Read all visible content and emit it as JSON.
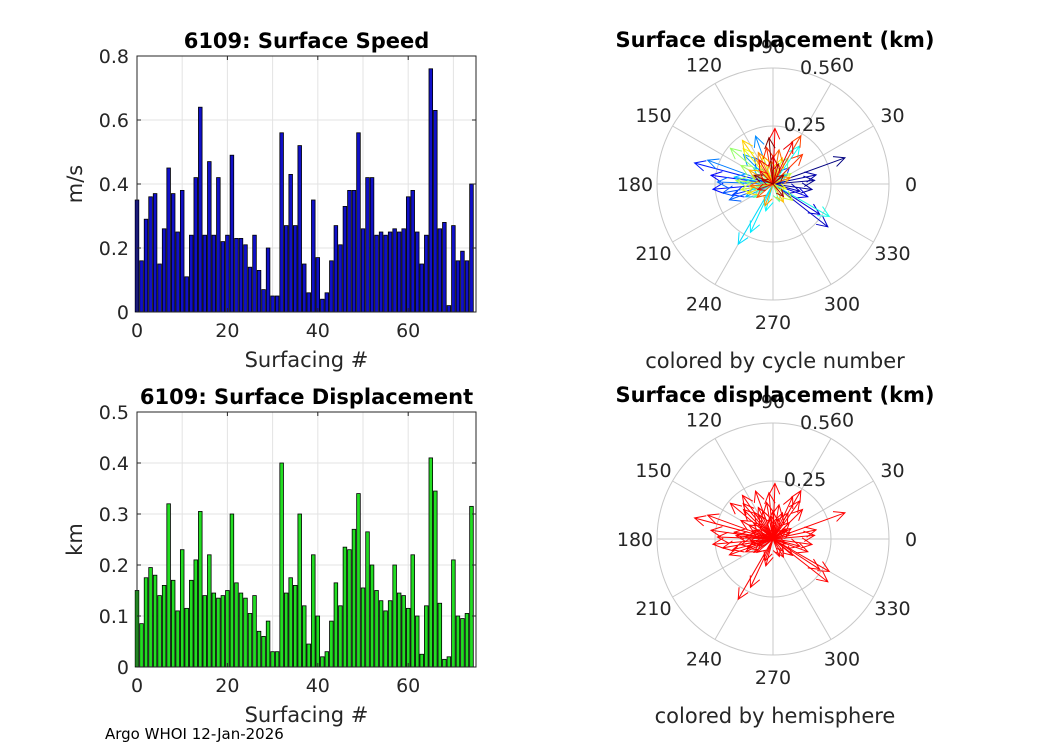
{
  "footer": "Argo WHOI 12-Jan-2026",
  "colors": {
    "speed_bar": "#1010c8",
    "displacement_bar": "#22dd22",
    "grid": "#e3e3e3",
    "polar_grid": "#c8c8c8",
    "arrow_hemisphere": "#ff0000"
  },
  "chart_data": [
    {
      "type": "bar",
      "title": "6109: Surface Speed",
      "xlabel": "Surfacing #",
      "ylabel": "m/s",
      "xlim": [
        0,
        75
      ],
      "ylim": [
        0,
        0.8
      ],
      "xticks": [
        "0",
        "20",
        "40",
        "60"
      ],
      "yticks": [
        "0",
        "0.2",
        "0.4",
        "0.6",
        "0.8"
      ],
      "x": [
        0,
        1,
        2,
        3,
        4,
        5,
        6,
        7,
        8,
        9,
        10,
        11,
        12,
        13,
        14,
        15,
        16,
        17,
        18,
        19,
        20,
        21,
        22,
        23,
        24,
        25,
        26,
        27,
        28,
        29,
        30,
        31,
        32,
        33,
        34,
        35,
        36,
        37,
        38,
        39,
        40,
        41,
        42,
        43,
        44,
        45,
        46,
        47,
        48,
        49,
        50,
        51,
        52,
        53,
        54,
        55,
        56,
        57,
        58,
        59,
        60,
        61,
        62,
        63,
        64,
        65,
        66,
        67,
        68,
        69,
        70,
        71,
        72,
        73,
        74
      ],
      "values": [
        0.35,
        0.16,
        0.29,
        0.36,
        0.37,
        0.15,
        0.26,
        0.45,
        0.37,
        0.25,
        0.38,
        0.11,
        0.24,
        0.42,
        0.64,
        0.24,
        0.47,
        0.24,
        0.42,
        0.22,
        0.24,
        0.49,
        0.23,
        0.23,
        0.21,
        0.14,
        0.24,
        0.13,
        0.07,
        0.2,
        0.05,
        0.05,
        0.56,
        0.27,
        0.43,
        0.27,
        0.52,
        0.15,
        0.06,
        0.35,
        0.17,
        0.04,
        0.06,
        0.16,
        0.27,
        0.21,
        0.33,
        0.38,
        0.38,
        0.56,
        0.26,
        0.42,
        0.42,
        0.24,
        0.25,
        0.24,
        0.25,
        0.26,
        0.25,
        0.26,
        0.36,
        0.38,
        0.25,
        0.15,
        0.24,
        0.76,
        0.63,
        0.26,
        0.28,
        0.02,
        0.27,
        0.16,
        0.19,
        0.16,
        0.4
      ]
    },
    {
      "type": "polar-quiver",
      "title": "Surface displacement (km)",
      "subtitle": "colored by cycle number",
      "rmax": 0.5,
      "radial_ticks": [
        "0.25",
        "0.5"
      ],
      "angle_ticks": [
        "0",
        "30",
        "60",
        "90",
        "120",
        "150",
        "180",
        "210",
        "240",
        "270",
        "300",
        "330"
      ],
      "vectors": [
        {
          "angle_deg": 20,
          "r": 0.33,
          "cycle": 1
        },
        {
          "angle_deg": 5,
          "r": 0.18,
          "cycle": 2
        },
        {
          "angle_deg": -8,
          "r": 0.17,
          "cycle": 3
        },
        {
          "angle_deg": 12,
          "r": 0.19,
          "cycle": 4
        },
        {
          "angle_deg": -15,
          "r": 0.12,
          "cycle": 5
        },
        {
          "angle_deg": -38,
          "r": 0.3,
          "cycle": 6
        },
        {
          "angle_deg": -33,
          "r": 0.24,
          "cycle": 7
        },
        {
          "angle_deg": -20,
          "r": 0.16,
          "cycle": 8
        },
        {
          "angle_deg": 150,
          "r": 0.08,
          "cycle": 9
        },
        {
          "angle_deg": 172,
          "r": 0.27,
          "cycle": 10
        },
        {
          "angle_deg": 185,
          "r": 0.26,
          "cycle": 11
        },
        {
          "angle_deg": 165,
          "r": 0.35,
          "cycle": 12
        },
        {
          "angle_deg": 195,
          "r": 0.18,
          "cycle": 13
        },
        {
          "angle_deg": 45,
          "r": 0.1,
          "cycle": 14
        },
        {
          "angle_deg": 125,
          "r": 0.14,
          "cycle": 15
        },
        {
          "angle_deg": 190,
          "r": 0.22,
          "cycle": 16
        },
        {
          "angle_deg": 200,
          "r": 0.2,
          "cycle": 17
        },
        {
          "angle_deg": 178,
          "r": 0.24,
          "cycle": 18
        },
        {
          "angle_deg": 160,
          "r": 0.3,
          "cycle": 19
        },
        {
          "angle_deg": 110,
          "r": 0.22,
          "cycle": 20
        },
        {
          "angle_deg": 135,
          "r": 0.18,
          "cycle": 21
        },
        {
          "angle_deg": 205,
          "r": 0.13,
          "cycle": 22
        },
        {
          "angle_deg": 170,
          "r": 0.17,
          "cycle": 23
        },
        {
          "angle_deg": 140,
          "r": 0.11,
          "cycle": 24
        },
        {
          "angle_deg": 35,
          "r": 0.07,
          "cycle": 25
        },
        {
          "angle_deg": 240,
          "r": 0.3,
          "cycle": 26
        },
        {
          "angle_deg": 245,
          "r": 0.23,
          "cycle": 27
        },
        {
          "angle_deg": 255,
          "r": 0.12,
          "cycle": 28
        },
        {
          "angle_deg": 55,
          "r": 0.2,
          "cycle": 29
        },
        {
          "angle_deg": 330,
          "r": 0.28,
          "cycle": 30
        },
        {
          "angle_deg": 195,
          "r": 0.09,
          "cycle": 31
        },
        {
          "angle_deg": 100,
          "r": 0.09,
          "cycle": 32
        },
        {
          "angle_deg": 175,
          "r": 0.12,
          "cycle": 33
        },
        {
          "angle_deg": 215,
          "r": 0.1,
          "cycle": 34
        },
        {
          "angle_deg": 60,
          "r": 0.13,
          "cycle": 35
        },
        {
          "angle_deg": 290,
          "r": 0.08,
          "cycle": 36
        },
        {
          "angle_deg": 160,
          "r": 0.1,
          "cycle": 37
        },
        {
          "angle_deg": 85,
          "r": 0.06,
          "cycle": 38
        },
        {
          "angle_deg": 140,
          "r": 0.24,
          "cycle": 39
        },
        {
          "angle_deg": 150,
          "r": 0.16,
          "cycle": 40
        },
        {
          "angle_deg": 175,
          "r": 0.16,
          "cycle": 41
        },
        {
          "angle_deg": 30,
          "r": 0.09,
          "cycle": 42
        },
        {
          "angle_deg": 320,
          "r": 0.11,
          "cycle": 43
        },
        {
          "angle_deg": 190,
          "r": 0.14,
          "cycle": 44
        },
        {
          "angle_deg": 130,
          "r": 0.2,
          "cycle": 45
        },
        {
          "angle_deg": 340,
          "r": 0.06,
          "cycle": 46
        },
        {
          "angle_deg": 110,
          "r": 0.13,
          "cycle": 47
        },
        {
          "angle_deg": 70,
          "r": 0.12,
          "cycle": 48
        },
        {
          "angle_deg": 200,
          "r": 0.12,
          "cycle": 49
        },
        {
          "angle_deg": 125,
          "r": 0.23,
          "cycle": 50
        },
        {
          "angle_deg": 300,
          "r": 0.09,
          "cycle": 51
        },
        {
          "angle_deg": 150,
          "r": 0.12,
          "cycle": 52
        },
        {
          "angle_deg": 95,
          "r": 0.1,
          "cycle": 53
        },
        {
          "angle_deg": 250,
          "r": 0.1,
          "cycle": 54
        },
        {
          "angle_deg": 115,
          "r": 0.15,
          "cycle": 55
        },
        {
          "angle_deg": 20,
          "r": 0.08,
          "cycle": 56
        },
        {
          "angle_deg": 185,
          "r": 0.1,
          "cycle": 57
        },
        {
          "angle_deg": 80,
          "r": 0.15,
          "cycle": 58
        },
        {
          "angle_deg": 220,
          "r": 0.09,
          "cycle": 59
        },
        {
          "angle_deg": 60,
          "r": 0.24,
          "cycle": 60
        },
        {
          "angle_deg": 45,
          "r": 0.18,
          "cycle": 61
        },
        {
          "angle_deg": 100,
          "r": 0.16,
          "cycle": 62
        },
        {
          "angle_deg": 120,
          "r": 0.12,
          "cycle": 63
        },
        {
          "angle_deg": 135,
          "r": 0.08,
          "cycle": 64
        },
        {
          "angle_deg": 88,
          "r": 0.24,
          "cycle": 65
        },
        {
          "angle_deg": 65,
          "r": 0.2,
          "cycle": 66
        },
        {
          "angle_deg": 200,
          "r": 0.07,
          "cycle": 67
        },
        {
          "angle_deg": 90,
          "r": 0.12,
          "cycle": 68
        },
        {
          "angle_deg": 160,
          "r": 0.05,
          "cycle": 69
        },
        {
          "angle_deg": 75,
          "r": 0.09,
          "cycle": 70
        },
        {
          "angle_deg": 310,
          "r": 0.07,
          "cycle": 71
        },
        {
          "angle_deg": 40,
          "r": 0.06,
          "cycle": 72
        },
        {
          "angle_deg": 155,
          "r": 0.09,
          "cycle": 73
        },
        {
          "angle_deg": 95,
          "r": 0.2,
          "cycle": 74
        }
      ]
    },
    {
      "type": "bar",
      "title": "6109: Surface Displacement",
      "xlabel": "Surfacing #",
      "ylabel": "km",
      "xlim": [
        0,
        75
      ],
      "ylim": [
        0,
        0.5
      ],
      "xticks": [
        "0",
        "20",
        "40",
        "60"
      ],
      "yticks": [
        "0",
        "0.1",
        "0.2",
        "0.3",
        "0.4",
        "0.5"
      ],
      "x": [
        0,
        1,
        2,
        3,
        4,
        5,
        6,
        7,
        8,
        9,
        10,
        11,
        12,
        13,
        14,
        15,
        16,
        17,
        18,
        19,
        20,
        21,
        22,
        23,
        24,
        25,
        26,
        27,
        28,
        29,
        30,
        31,
        32,
        33,
        34,
        35,
        36,
        37,
        38,
        39,
        40,
        41,
        42,
        43,
        44,
        45,
        46,
        47,
        48,
        49,
        50,
        51,
        52,
        53,
        54,
        55,
        56,
        57,
        58,
        59,
        60,
        61,
        62,
        63,
        64,
        65,
        66,
        67,
        68,
        69,
        70,
        71,
        72,
        73,
        74
      ],
      "values": [
        0.15,
        0.085,
        0.175,
        0.195,
        0.18,
        0.14,
        0.16,
        0.32,
        0.17,
        0.11,
        0.23,
        0.115,
        0.17,
        0.21,
        0.305,
        0.14,
        0.22,
        0.145,
        0.135,
        0.14,
        0.15,
        0.3,
        0.165,
        0.145,
        0.135,
        0.105,
        0.14,
        0.07,
        0.06,
        0.09,
        0.03,
        0.03,
        0.4,
        0.145,
        0.175,
        0.16,
        0.3,
        0.12,
        0.045,
        0.22,
        0.1,
        0.02,
        0.03,
        0.09,
        0.165,
        0.12,
        0.235,
        0.23,
        0.27,
        0.34,
        0.155,
        0.265,
        0.2,
        0.15,
        0.13,
        0.11,
        0.13,
        0.2,
        0.145,
        0.14,
        0.115,
        0.22,
        0.1,
        0.025,
        0.12,
        0.41,
        0.345,
        0.125,
        0.015,
        0.02,
        0.21,
        0.1,
        0.095,
        0.105,
        0.315
      ]
    },
    {
      "type": "polar-quiver",
      "title": "Surface displacement (km)",
      "subtitle": "colored by hemisphere",
      "rmax": 0.5,
      "radial_ticks": [
        "0.25",
        "0.5"
      ],
      "angle_ticks": [
        "0",
        "30",
        "60",
        "90",
        "120",
        "150",
        "180",
        "210",
        "240",
        "270",
        "300",
        "330"
      ],
      "vectors": [
        {
          "angle_deg": 20,
          "r": 0.33,
          "cycle": 1
        },
        {
          "angle_deg": 5,
          "r": 0.18,
          "cycle": 2
        },
        {
          "angle_deg": -8,
          "r": 0.17,
          "cycle": 3
        },
        {
          "angle_deg": 12,
          "r": 0.19,
          "cycle": 4
        },
        {
          "angle_deg": -15,
          "r": 0.12,
          "cycle": 5
        },
        {
          "angle_deg": -38,
          "r": 0.3,
          "cycle": 6
        },
        {
          "angle_deg": -33,
          "r": 0.24,
          "cycle": 7
        },
        {
          "angle_deg": -20,
          "r": 0.16,
          "cycle": 8
        },
        {
          "angle_deg": 150,
          "r": 0.08,
          "cycle": 9
        },
        {
          "angle_deg": 172,
          "r": 0.27,
          "cycle": 10
        },
        {
          "angle_deg": 185,
          "r": 0.26,
          "cycle": 11
        },
        {
          "angle_deg": 165,
          "r": 0.35,
          "cycle": 12
        },
        {
          "angle_deg": 195,
          "r": 0.18,
          "cycle": 13
        },
        {
          "angle_deg": 45,
          "r": 0.1,
          "cycle": 14
        },
        {
          "angle_deg": 125,
          "r": 0.14,
          "cycle": 15
        },
        {
          "angle_deg": 190,
          "r": 0.22,
          "cycle": 16
        },
        {
          "angle_deg": 200,
          "r": 0.2,
          "cycle": 17
        },
        {
          "angle_deg": 178,
          "r": 0.24,
          "cycle": 18
        },
        {
          "angle_deg": 160,
          "r": 0.3,
          "cycle": 19
        },
        {
          "angle_deg": 110,
          "r": 0.22,
          "cycle": 20
        },
        {
          "angle_deg": 135,
          "r": 0.18,
          "cycle": 21
        },
        {
          "angle_deg": 205,
          "r": 0.13,
          "cycle": 22
        },
        {
          "angle_deg": 170,
          "r": 0.17,
          "cycle": 23
        },
        {
          "angle_deg": 140,
          "r": 0.11,
          "cycle": 24
        },
        {
          "angle_deg": 35,
          "r": 0.07,
          "cycle": 25
        },
        {
          "angle_deg": 240,
          "r": 0.3,
          "cycle": 26
        },
        {
          "angle_deg": 245,
          "r": 0.23,
          "cycle": 27
        },
        {
          "angle_deg": 255,
          "r": 0.12,
          "cycle": 28
        },
        {
          "angle_deg": 55,
          "r": 0.2,
          "cycle": 29
        },
        {
          "angle_deg": 330,
          "r": 0.28,
          "cycle": 30
        },
        {
          "angle_deg": 195,
          "r": 0.09,
          "cycle": 31
        },
        {
          "angle_deg": 100,
          "r": 0.09,
          "cycle": 32
        },
        {
          "angle_deg": 175,
          "r": 0.12,
          "cycle": 33
        },
        {
          "angle_deg": 215,
          "r": 0.1,
          "cycle": 34
        },
        {
          "angle_deg": 60,
          "r": 0.13,
          "cycle": 35
        },
        {
          "angle_deg": 290,
          "r": 0.08,
          "cycle": 36
        },
        {
          "angle_deg": 160,
          "r": 0.1,
          "cycle": 37
        },
        {
          "angle_deg": 85,
          "r": 0.06,
          "cycle": 38
        },
        {
          "angle_deg": 140,
          "r": 0.24,
          "cycle": 39
        },
        {
          "angle_deg": 150,
          "r": 0.16,
          "cycle": 40
        },
        {
          "angle_deg": 175,
          "r": 0.16,
          "cycle": 41
        },
        {
          "angle_deg": 30,
          "r": 0.09,
          "cycle": 42
        },
        {
          "angle_deg": 320,
          "r": 0.11,
          "cycle": 43
        },
        {
          "angle_deg": 190,
          "r": 0.14,
          "cycle": 44
        },
        {
          "angle_deg": 130,
          "r": 0.2,
          "cycle": 45
        },
        {
          "angle_deg": 340,
          "r": 0.06,
          "cycle": 46
        },
        {
          "angle_deg": 110,
          "r": 0.13,
          "cycle": 47
        },
        {
          "angle_deg": 70,
          "r": 0.12,
          "cycle": 48
        },
        {
          "angle_deg": 200,
          "r": 0.12,
          "cycle": 49
        },
        {
          "angle_deg": 125,
          "r": 0.23,
          "cycle": 50
        },
        {
          "angle_deg": 300,
          "r": 0.09,
          "cycle": 51
        },
        {
          "angle_deg": 150,
          "r": 0.12,
          "cycle": 52
        },
        {
          "angle_deg": 95,
          "r": 0.1,
          "cycle": 53
        },
        {
          "angle_deg": 250,
          "r": 0.1,
          "cycle": 54
        },
        {
          "angle_deg": 115,
          "r": 0.15,
          "cycle": 55
        },
        {
          "angle_deg": 20,
          "r": 0.08,
          "cycle": 56
        },
        {
          "angle_deg": 185,
          "r": 0.1,
          "cycle": 57
        },
        {
          "angle_deg": 80,
          "r": 0.15,
          "cycle": 58
        },
        {
          "angle_deg": 220,
          "r": 0.09,
          "cycle": 59
        },
        {
          "angle_deg": 60,
          "r": 0.24,
          "cycle": 60
        },
        {
          "angle_deg": 45,
          "r": 0.18,
          "cycle": 61
        },
        {
          "angle_deg": 100,
          "r": 0.16,
          "cycle": 62
        },
        {
          "angle_deg": 120,
          "r": 0.12,
          "cycle": 63
        },
        {
          "angle_deg": 135,
          "r": 0.08,
          "cycle": 64
        },
        {
          "angle_deg": 88,
          "r": 0.24,
          "cycle": 65
        },
        {
          "angle_deg": 65,
          "r": 0.2,
          "cycle": 66
        },
        {
          "angle_deg": 200,
          "r": 0.07,
          "cycle": 67
        },
        {
          "angle_deg": 90,
          "r": 0.12,
          "cycle": 68
        },
        {
          "angle_deg": 160,
          "r": 0.05,
          "cycle": 69
        },
        {
          "angle_deg": 75,
          "r": 0.09,
          "cycle": 70
        },
        {
          "angle_deg": 310,
          "r": 0.07,
          "cycle": 71
        },
        {
          "angle_deg": 40,
          "r": 0.06,
          "cycle": 72
        },
        {
          "angle_deg": 155,
          "r": 0.09,
          "cycle": 73
        },
        {
          "angle_deg": 95,
          "r": 0.2,
          "cycle": 74
        }
      ]
    }
  ]
}
